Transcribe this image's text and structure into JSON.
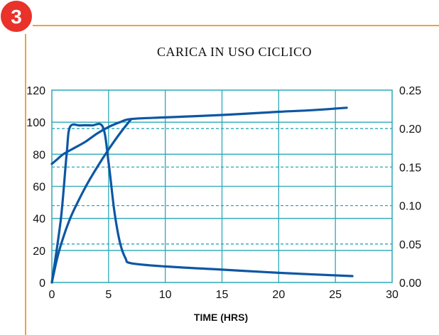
{
  "badge": {
    "number": "3",
    "color": "#e8322a"
  },
  "frame_color": "#f0a040",
  "chart_data": {
    "type": "line",
    "title": "CARICA IN USO CICLICO",
    "xlabel": "TIME (HRS)",
    "ylabel": "",
    "y2label": "",
    "xlim": [
      0,
      30
    ],
    "ylim": [
      0,
      120
    ],
    "y2lim": [
      0,
      0.25
    ],
    "x_ticks": [
      "0",
      "5",
      "10",
      "15",
      "20",
      "25",
      "30"
    ],
    "y_ticks": [
      "0",
      "20",
      "40",
      "60",
      "80",
      "100",
      "120"
    ],
    "y2_ticks": [
      "0.00",
      "0.05",
      "0.10",
      "0.15",
      "0.20",
      "0.25"
    ],
    "grid": true,
    "grid_color": "#2aa8b8",
    "line_color": "#0d57a3",
    "series": [
      {
        "axis": "left",
        "points": [
          [
            0,
            74
          ],
          [
            0.5,
            77
          ],
          [
            1,
            80
          ],
          [
            2,
            84
          ],
          [
            3,
            88
          ],
          [
            4,
            93
          ],
          [
            5,
            97
          ],
          [
            6,
            100
          ],
          [
            7,
            102
          ],
          [
            10,
            103
          ],
          [
            15,
            104.5
          ],
          [
            20,
            106.5
          ],
          [
            23,
            107.5
          ],
          [
            26,
            109
          ]
        ]
      },
      {
        "axis": "left",
        "points": [
          [
            0,
            0
          ],
          [
            0.5,
            16
          ],
          [
            1,
            28
          ],
          [
            1.5,
            38
          ],
          [
            2,
            46
          ],
          [
            3,
            60
          ],
          [
            4,
            72
          ],
          [
            5,
            83
          ],
          [
            6,
            93
          ],
          [
            7,
            102
          ]
        ]
      },
      {
        "axis": "left",
        "points": [
          [
            0,
            0
          ],
          [
            0.8,
            40
          ],
          [
            1.3,
            80
          ],
          [
            1.6,
            97
          ],
          [
            2.5,
            98
          ],
          [
            3.5,
            98
          ],
          [
            4.5,
            97
          ],
          [
            5,
            75
          ],
          [
            5.5,
            45
          ],
          [
            6,
            25
          ],
          [
            6.5,
            15
          ],
          [
            7,
            12
          ],
          [
            10,
            10
          ],
          [
            15,
            8
          ],
          [
            20,
            6
          ],
          [
            26.5,
            4
          ]
        ]
      }
    ]
  }
}
